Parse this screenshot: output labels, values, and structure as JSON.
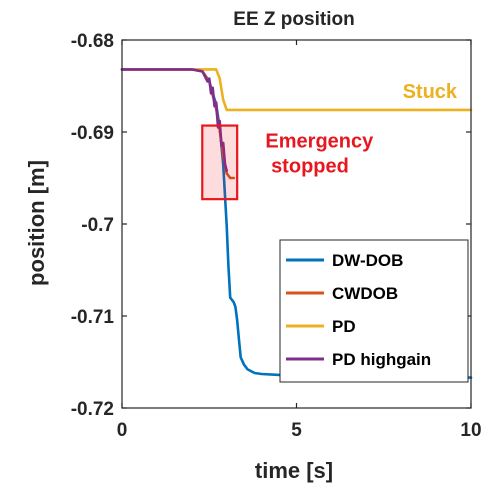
{
  "chart_data": {
    "type": "line",
    "title": "EE Z position",
    "xlabel": "time [s]",
    "ylabel": "position [m]",
    "xlim": [
      0,
      10
    ],
    "ylim": [
      -0.72,
      -0.68
    ],
    "xticks": [
      0,
      5,
      10
    ],
    "xtick_labels": [
      "0",
      "5",
      "10"
    ],
    "yticks": [
      -0.68,
      -0.69,
      -0.7,
      -0.71,
      -0.72
    ],
    "ytick_labels": [
      "-0.68",
      "-0.69",
      "-0.7",
      "-0.71",
      "-0.72"
    ],
    "grid": false,
    "legend_position": "bottom-right",
    "series": [
      {
        "name": "DW-DOB",
        "color": "#0072BD",
        "x": [
          0,
          2.0,
          2.3,
          2.5,
          2.6,
          2.7,
          2.8,
          2.9,
          3.0,
          3.05,
          3.1,
          3.2,
          3.25,
          3.3,
          3.35,
          3.4,
          3.5,
          3.6,
          3.8,
          4.0,
          4.5,
          5.0,
          6.0,
          7.0,
          8.0,
          9.0,
          10.0
        ],
        "y": [
          -0.6832,
          -0.6832,
          -0.6834,
          -0.6845,
          -0.6858,
          -0.687,
          -0.6895,
          -0.6935,
          -0.7002,
          -0.7045,
          -0.708,
          -0.7085,
          -0.709,
          -0.7105,
          -0.7125,
          -0.7145,
          -0.7153,
          -0.7158,
          -0.7162,
          -0.7163,
          -0.7164,
          -0.7165,
          -0.7166,
          -0.7166,
          -0.7166,
          -0.7167,
          -0.7167
        ]
      },
      {
        "name": "CWDOB",
        "color": "#D95319",
        "x": [
          0,
          2.0,
          2.3,
          2.5,
          2.6,
          2.7,
          2.8,
          2.9,
          3.0,
          3.1,
          3.2
        ],
        "y": [
          -0.6832,
          -0.6832,
          -0.6834,
          -0.6845,
          -0.686,
          -0.6875,
          -0.6898,
          -0.6925,
          -0.6945,
          -0.695,
          -0.695
        ]
      },
      {
        "name": "PD",
        "color": "#EDB120",
        "x": [
          0,
          2.7,
          2.8,
          2.9,
          3.0,
          3.5,
          5.0,
          7.5,
          10.0
        ],
        "y": [
          -0.6832,
          -0.6832,
          -0.6842,
          -0.6865,
          -0.6876,
          -0.6876,
          -0.6876,
          -0.6876,
          -0.6876
        ]
      },
      {
        "name": "PD highgain",
        "color": "#7E2F8E",
        "x": [
          0,
          2.0,
          2.3,
          2.45,
          2.5,
          2.55,
          2.6,
          2.65,
          2.7,
          2.75,
          2.8,
          2.85,
          2.9,
          2.95,
          3.0
        ],
        "y": [
          -0.6832,
          -0.6832,
          -0.6834,
          -0.6845,
          -0.6842,
          -0.6858,
          -0.6852,
          -0.6872,
          -0.6868,
          -0.6895,
          -0.6888,
          -0.6915,
          -0.6912,
          -0.6935,
          -0.6942
        ]
      }
    ],
    "annotations": [
      {
        "text": "Stuck",
        "color": "#EDB120",
        "x": 9.6,
        "y": -0.6863
      },
      {
        "text": "Emergency",
        "color": "#E8161E",
        "x": 7.2,
        "y": -0.6917
      },
      {
        "text": "stopped",
        "color": "#E8161E",
        "x": 6.5,
        "y": -0.6944
      }
    ],
    "highlight_box": {
      "color": "#E8161E",
      "x0": 2.3,
      "x1": 3.3,
      "y0": -0.6893,
      "y1": -0.6973
    }
  }
}
